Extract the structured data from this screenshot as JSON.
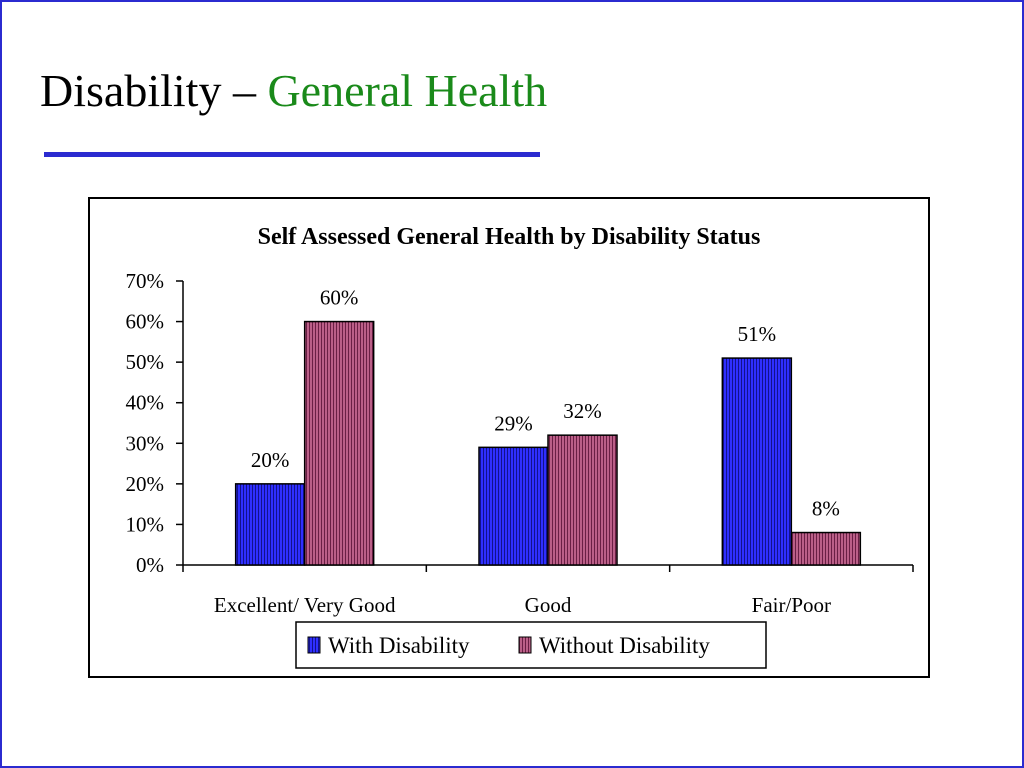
{
  "slide": {
    "title_main": "Disability – ",
    "title_accent": "General Health",
    "accent_color": "#1a8a1a",
    "rule_color": "#2b2bd0"
  },
  "chart_data": {
    "type": "bar",
    "title": "Self Assessed General Health by Disability Status",
    "xlabel": "",
    "ylabel": "",
    "categories": [
      "Excellent/ Very Good",
      "Good",
      "Fair/Poor"
    ],
    "series": [
      {
        "name": "With Disability",
        "values": [
          20,
          29,
          51
        ],
        "labels": [
          "20%",
          "29%",
          "51%"
        ],
        "color": "#2a2aff"
      },
      {
        "name": "Without Disability",
        "values": [
          60,
          32,
          8
        ],
        "labels": [
          "60%",
          "32%",
          "8%"
        ],
        "color": "#b04f7a"
      }
    ],
    "ylim": [
      0,
      70
    ],
    "yticks": [
      0,
      10,
      20,
      30,
      40,
      50,
      60,
      70
    ],
    "ytick_labels": [
      "0%",
      "10%",
      "20%",
      "30%",
      "40%",
      "50%",
      "60%",
      "70%"
    ],
    "grid": false,
    "legend_position": "bottom"
  }
}
